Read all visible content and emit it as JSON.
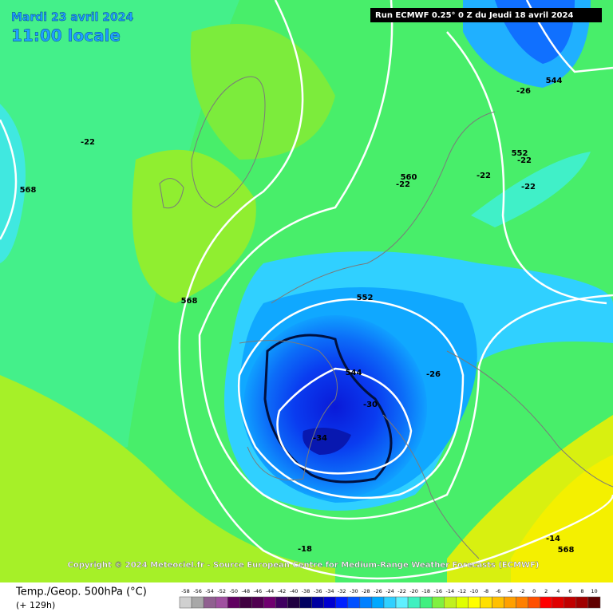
{
  "header": {
    "date": "Mardi 23 avril 2024",
    "time": "11:00 locale",
    "run": "Run ECMWF 0.25° 0 Z du Jeudi 18 avril 2024"
  },
  "map": {
    "contour_labels": [
      "-22",
      "568",
      "560",
      "-22",
      "568",
      "552",
      "544",
      "-26",
      "-30",
      "-34",
      "-18",
      "-14",
      "568",
      "544",
      "-26",
      "552",
      "-22",
      "-22",
      "-22"
    ]
  },
  "copyright": "Copyright © 2024 Meteociel.fr - Source European Centre for Medium-Range Weather Forecasts (ECMWF)",
  "legend": {
    "title": "Temp./Geop. 500hPa (°C)",
    "lead": "(+ 129h)",
    "labels": [
      "-58",
      "-56",
      "-54",
      "-52",
      "-50",
      "-48",
      "-46",
      "-44",
      "-42",
      "-40",
      "-38",
      "-36",
      "-34",
      "-32",
      "-30",
      "-28",
      "-26",
      "-24",
      "-22",
      "-20",
      "-18",
      "-16",
      "-14",
      "-12",
      "-10",
      "-8",
      "-6",
      "-4",
      "-2",
      "0",
      "2",
      "4",
      "6",
      "8",
      "10"
    ],
    "colors": [
      "#d0d0d0",
      "#a8a8a8",
      "#906090",
      "#a050a0",
      "#600060",
      "#400040",
      "#500050",
      "#700070",
      "#400060",
      "#200040",
      "#000060",
      "#0000a0",
      "#0000d0",
      "#0020ff",
      "#0050ff",
      "#0080ff",
      "#00a8ff",
      "#30d0ff",
      "#60f0ff",
      "#40f0c0",
      "#40f080",
      "#80f040",
      "#c0f020",
      "#e0ff00",
      "#ffff00",
      "#ffe000",
      "#ffc000",
      "#ffa000",
      "#ff8000",
      "#ff5000",
      "#ff0000",
      "#e00000",
      "#c00000",
      "#a00000",
      "#600000"
    ]
  }
}
